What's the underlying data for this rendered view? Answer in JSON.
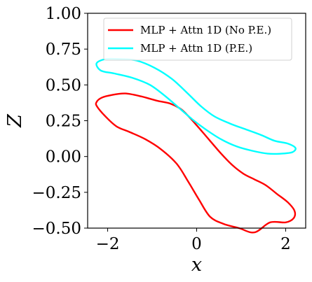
{
  "chart_data": {
    "type": "line",
    "title": "",
    "xlabel": "x",
    "ylabel": "Z",
    "xlim": [
      -2.45,
      2.45
    ],
    "ylim": [
      -0.5,
      1.0
    ],
    "xticks": [
      -2,
      0,
      2
    ],
    "xtick_labels": [
      "−2",
      "0",
      "2"
    ],
    "yticks": [
      -0.5,
      -0.25,
      0.0,
      0.25,
      0.5,
      0.75,
      1.0
    ],
    "ytick_labels": [
      "−0.50",
      "−0.25",
      "0.00",
      "0.25",
      "0.50",
      "0.75",
      "1.00"
    ],
    "grid": false,
    "legend_position": "top-right",
    "series": [
      {
        "name": "MLP + Attn 1D (No P.E.)",
        "color": "#ff0000",
        "closed": true,
        "x": [
          -2.24,
          -2.05,
          -1.8,
          -1.5,
          -1.15,
          -0.8,
          -0.45,
          -0.2,
          0.05,
          0.3,
          0.6,
          0.95,
          1.3,
          1.65,
          2.0,
          2.18,
          2.2,
          2.05,
          1.8,
          1.55,
          1.3,
          1.05,
          0.8,
          0.55,
          0.3,
          0.05,
          -0.15,
          -0.35,
          -0.6,
          -0.9,
          -1.25,
          -1.6,
          -1.9,
          -2.14,
          -2.25,
          -2.24
        ],
        "y": [
          0.35,
          0.28,
          0.21,
          0.17,
          0.12,
          0.05,
          -0.05,
          -0.17,
          -0.3,
          -0.42,
          -0.47,
          -0.5,
          -0.53,
          -0.46,
          -0.46,
          -0.43,
          -0.38,
          -0.32,
          -0.26,
          -0.2,
          -0.16,
          -0.12,
          -0.06,
          0.02,
          0.11,
          0.2,
          0.27,
          0.33,
          0.37,
          0.39,
          0.42,
          0.44,
          0.43,
          0.41,
          0.38,
          0.35
        ]
      },
      {
        "name": "MLP + Attn 1D (P.E.)",
        "color": "#00ffff",
        "closed": true,
        "x": [
          -2.25,
          -2.05,
          -1.7,
          -1.35,
          -0.95,
          -0.55,
          -0.2,
          0.1,
          0.4,
          0.75,
          1.1,
          1.45,
          1.75,
          2.05,
          2.22,
          2.15,
          1.9,
          1.6,
          1.25,
          0.9,
          0.55,
          0.2,
          -0.1,
          -0.4,
          -0.7,
          -1.05,
          -1.45,
          -1.85,
          -2.15,
          -2.25
        ],
        "y": [
          0.65,
          0.68,
          0.68,
          0.67,
          0.62,
          0.54,
          0.44,
          0.35,
          0.28,
          0.23,
          0.19,
          0.15,
          0.11,
          0.09,
          0.06,
          0.03,
          0.02,
          0.02,
          0.04,
          0.07,
          0.12,
          0.19,
          0.26,
          0.34,
          0.42,
          0.5,
          0.55,
          0.58,
          0.6,
          0.65
        ]
      }
    ]
  }
}
